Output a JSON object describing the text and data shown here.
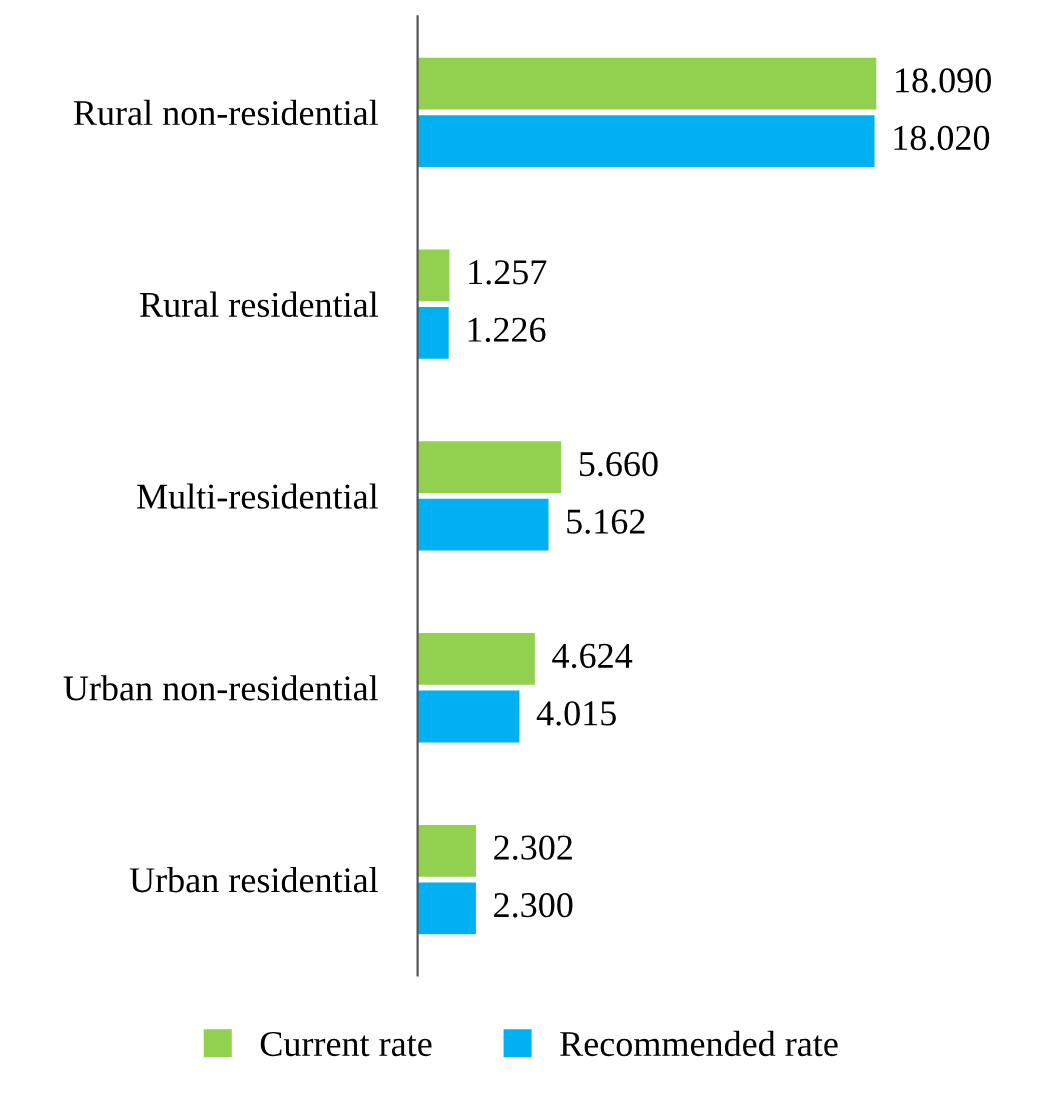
{
  "chart_data": {
    "type": "bar",
    "orientation": "horizontal",
    "categories": [
      "Rural non-residential",
      "Rural residential",
      "Multi-residential",
      "Urban non-residential",
      "Urban residential"
    ],
    "series": [
      {
        "name": "Current rate",
        "color": "#92d050",
        "values": [
          18.09,
          1.257,
          5.66,
          4.624,
          2.302
        ],
        "value_labels": [
          "18.090",
          "1.257",
          "5.660",
          "4.624",
          "2.302"
        ]
      },
      {
        "name": "Recommended rate",
        "color": "#00b0f0",
        "values": [
          18.02,
          1.226,
          5.162,
          4.015,
          2.3
        ],
        "value_labels": [
          "18.020",
          "1.226",
          "5.162",
          "4.015",
          "2.300"
        ]
      }
    ],
    "legend": "bottom",
    "grid": false
  }
}
